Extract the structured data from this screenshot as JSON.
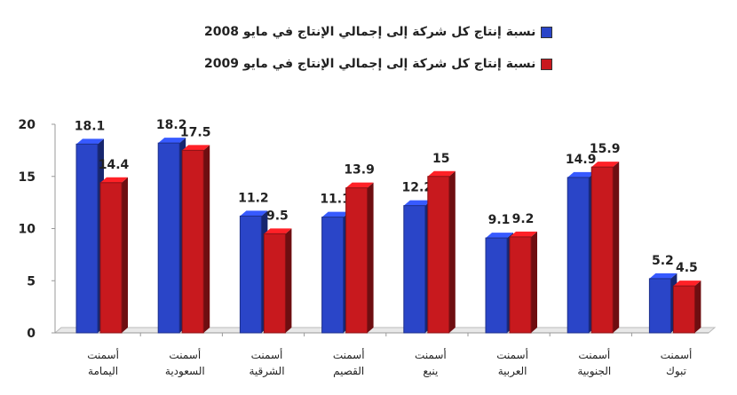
{
  "chart_data": {
    "type": "bar",
    "categories": [
      "أسمنت اليمامة",
      "أسمنت السعودية",
      "أسمنت الشرقية",
      "أسمنت القصيم",
      "أسمنت ينبع",
      "أسمنت العربية",
      "أسمنت الجنوبية",
      "أسمنت تبوك"
    ],
    "series": [
      {
        "name": "نسبة إنتاج كل شركة إلى إجمالي الإنتاج في مايو 2008",
        "color": "#2a45c8",
        "values": [
          18.1,
          18.2,
          11.2,
          11.1,
          12.2,
          9.1,
          14.9,
          5.2
        ],
        "labels": [
          "18.1",
          "18.2",
          "11.2",
          "11.1",
          "12.2",
          "9.1",
          "14.9",
          "5.2"
        ]
      },
      {
        "name": "نسبة إنتاج كل شركة إلى إجمالي الإنتاج في مايو 2009",
        "color": "#c8191e",
        "values": [
          14.4,
          17.5,
          9.5,
          13.9,
          15,
          9.2,
          15.9,
          4.5
        ],
        "labels": [
          "14.4",
          "17.5",
          "9.5",
          "13.9",
          "15",
          "9.2",
          "15.9",
          "4.5"
        ]
      }
    ],
    "yticks": [
      "0",
      "5",
      "10",
      "15",
      "20"
    ],
    "ylim": [
      0,
      20
    ],
    "grid": false,
    "legend": "top-center",
    "style": "3d-column"
  }
}
